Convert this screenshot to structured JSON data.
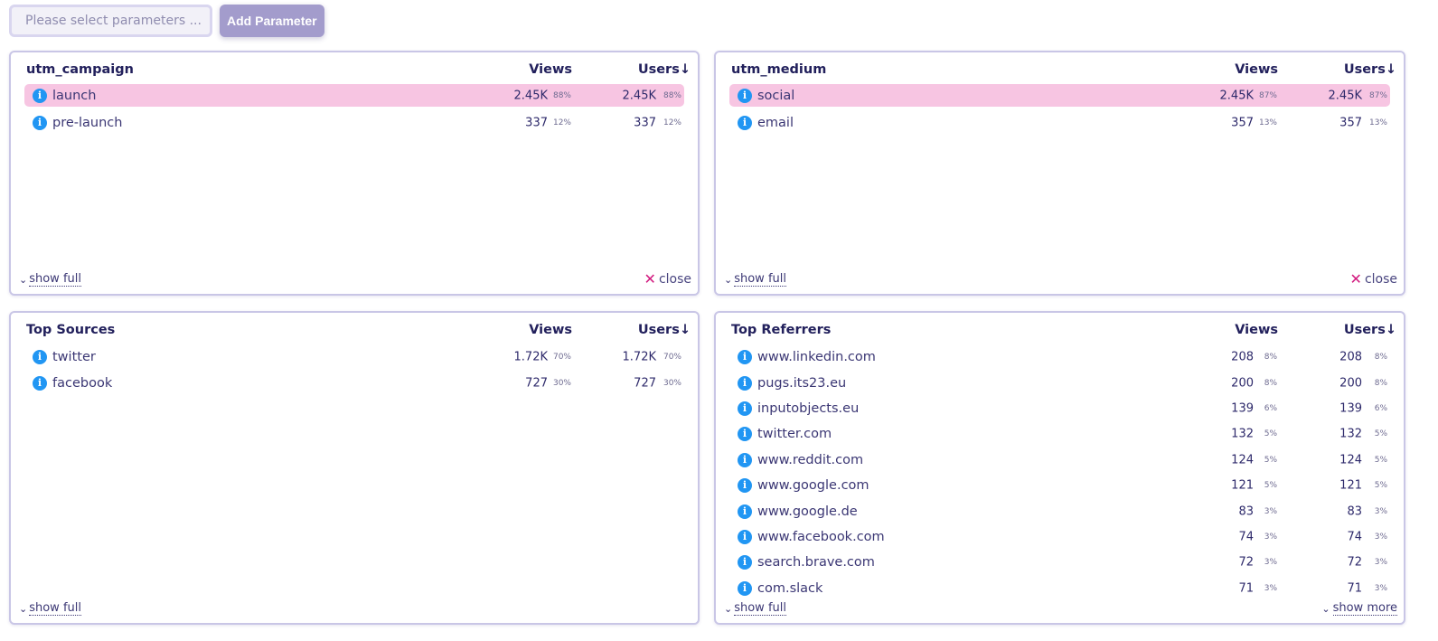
{
  "toolbar": {
    "param_placeholder": "Please select parameters ...",
    "add_param_label": "Add Parameter"
  },
  "labels": {
    "views": "Views",
    "users": "Users",
    "sort_arrow": "↓",
    "show_full": "show full",
    "show_more": "show more",
    "close": "close",
    "info_glyph": "i",
    "chevron": "⌄"
  },
  "colors": {
    "accent": "#a39ccc",
    "highlight": "#f7c5e2",
    "info_icon": "#2196f3",
    "close_icon": "#d21b7f"
  },
  "cards": {
    "utm_campaign": {
      "title": "utm_campaign",
      "rows": [
        {
          "label": "launch",
          "views": "2.45K",
          "views_pct": "88%",
          "users": "2.45K",
          "users_pct": "88%",
          "highlighted": true
        },
        {
          "label": "pre-launch",
          "views": "337",
          "views_pct": "12%",
          "users": "337",
          "users_pct": "12%",
          "highlighted": false
        }
      ]
    },
    "utm_medium": {
      "title": "utm_medium",
      "rows": [
        {
          "label": "social",
          "views": "2.45K",
          "views_pct": "87%",
          "users": "2.45K",
          "users_pct": "87%",
          "highlighted": true
        },
        {
          "label": "email",
          "views": "357",
          "views_pct": "13%",
          "users": "357",
          "users_pct": "13%",
          "highlighted": false
        }
      ]
    },
    "top_sources": {
      "title": "Top Sources",
      "rows": [
        {
          "label": "twitter",
          "views": "1.72K",
          "views_pct": "70%",
          "users": "1.72K",
          "users_pct": "70%",
          "highlighted": false
        },
        {
          "label": "facebook",
          "views": "727",
          "views_pct": "30%",
          "users": "727",
          "users_pct": "30%",
          "highlighted": false
        }
      ]
    },
    "top_referrers": {
      "title": "Top Referrers",
      "rows": [
        {
          "label": "www.linkedin.com",
          "views": "208",
          "views_pct": "8%",
          "users": "208",
          "users_pct": "8%",
          "highlighted": false
        },
        {
          "label": "pugs.its23.eu",
          "views": "200",
          "views_pct": "8%",
          "users": "200",
          "users_pct": "8%",
          "highlighted": false
        },
        {
          "label": "inputobjects.eu",
          "views": "139",
          "views_pct": "6%",
          "users": "139",
          "users_pct": "6%",
          "highlighted": false
        },
        {
          "label": "twitter.com",
          "views": "132",
          "views_pct": "5%",
          "users": "132",
          "users_pct": "5%",
          "highlighted": false
        },
        {
          "label": "www.reddit.com",
          "views": "124",
          "views_pct": "5%",
          "users": "124",
          "users_pct": "5%",
          "highlighted": false
        },
        {
          "label": "www.google.com",
          "views": "121",
          "views_pct": "5%",
          "users": "121",
          "users_pct": "5%",
          "highlighted": false
        },
        {
          "label": "www.google.de",
          "views": "83",
          "views_pct": "3%",
          "users": "83",
          "users_pct": "3%",
          "highlighted": false
        },
        {
          "label": "www.facebook.com",
          "views": "74",
          "views_pct": "3%",
          "users": "74",
          "users_pct": "3%",
          "highlighted": false
        },
        {
          "label": "search.brave.com",
          "views": "72",
          "views_pct": "3%",
          "users": "72",
          "users_pct": "3%",
          "highlighted": false
        },
        {
          "label": "com.slack",
          "views": "71",
          "views_pct": "3%",
          "users": "71",
          "users_pct": "3%",
          "highlighted": false
        }
      ]
    }
  }
}
